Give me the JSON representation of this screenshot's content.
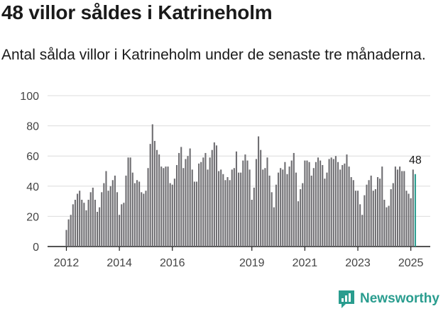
{
  "brand": {
    "name": "Newsworthy"
  },
  "chart_data": {
    "type": "bar",
    "title": "48 villor såldes i Katrineholm",
    "subtitle": "Antal sålda villor i Katrineholm under de senaste tre månaderna.",
    "xlabel": "",
    "ylabel": "",
    "ylim": [
      0,
      100
    ],
    "yticks": [
      0,
      20,
      40,
      60,
      80,
      100
    ],
    "grid": true,
    "x_ticks": [
      {
        "label": "2012",
        "index": 0
      },
      {
        "label": "2014",
        "index": 24
      },
      {
        "label": "2016",
        "index": 48
      },
      {
        "label": "2019",
        "index": 84
      },
      {
        "label": "2021",
        "index": 108
      },
      {
        "label": "2023",
        "index": 132
      },
      {
        "label": "2025",
        "index": 156
      }
    ],
    "bar_color": "#6f6e72",
    "highlight_color": "#2a9d8f",
    "highlight_label": "48",
    "values": [
      11,
      18,
      21,
      28,
      31,
      35,
      37,
      31,
      29,
      24,
      31,
      36,
      39,
      31,
      23,
      26,
      36,
      42,
      50,
      37,
      40,
      44,
      47,
      36,
      21,
      28,
      29,
      47,
      59,
      59,
      49,
      42,
      44,
      43,
      36,
      35,
      37,
      52,
      68,
      81,
      70,
      64,
      61,
      53,
      52,
      53,
      53,
      42,
      41,
      45,
      54,
      62,
      66,
      52,
      58,
      60,
      65,
      51,
      43,
      43,
      55,
      56,
      59,
      62,
      51,
      59,
      64,
      69,
      67,
      50,
      51,
      48,
      44,
      46,
      44,
      51,
      52,
      63,
      49,
      49,
      57,
      61,
      57,
      51,
      31,
      39,
      58,
      73,
      64,
      51,
      52,
      59,
      47,
      36,
      26,
      41,
      49,
      52,
      51,
      56,
      48,
      53,
      57,
      62,
      49,
      30,
      38,
      42,
      57,
      57,
      56,
      47,
      52,
      56,
      59,
      57,
      54,
      45,
      49,
      58,
      59,
      58,
      60,
      56,
      51,
      54,
      55,
      61,
      53,
      46,
      44,
      37,
      37,
      28,
      21,
      34,
      41,
      44,
      47,
      37,
      38,
      46,
      45,
      53,
      31,
      26,
      27,
      38,
      42,
      53,
      51,
      53,
      50,
      50,
      37,
      35,
      32,
      51,
      48
    ]
  }
}
